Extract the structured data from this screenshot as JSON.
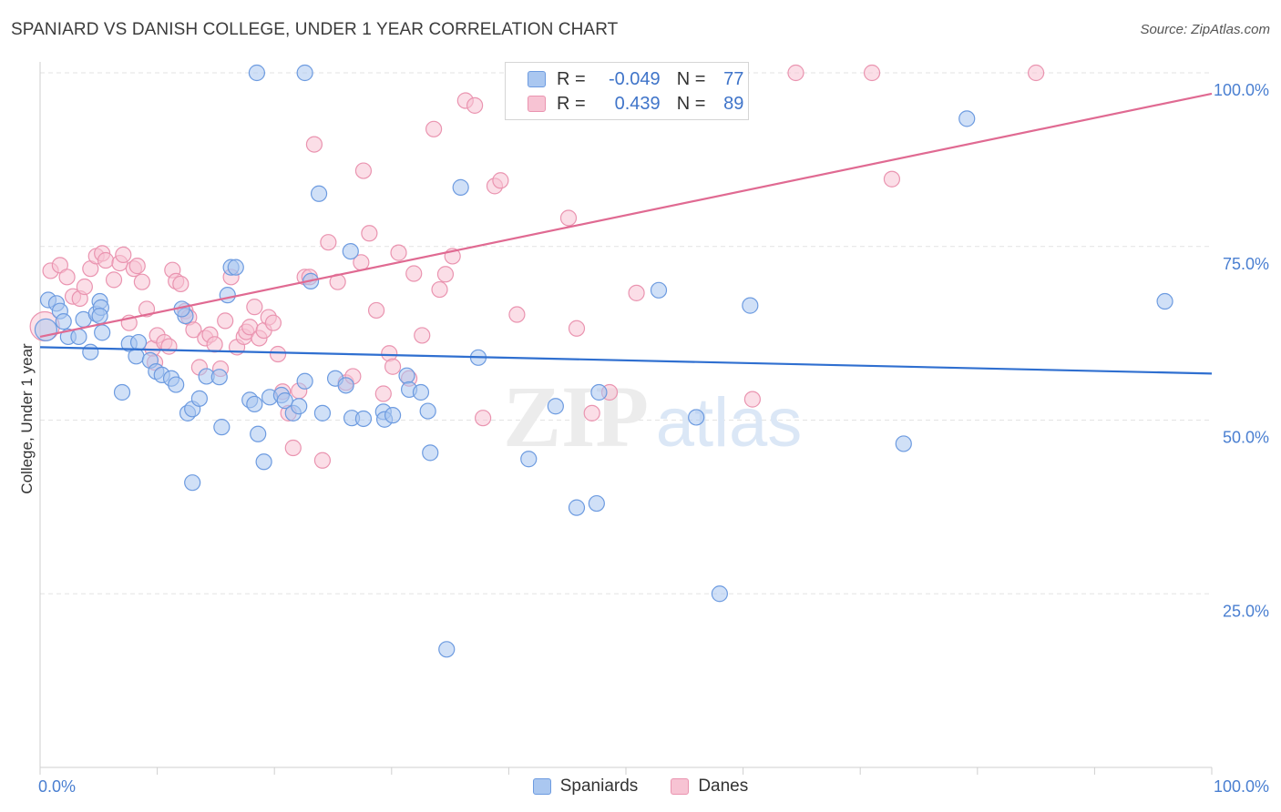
{
  "title": "SPANIARD VS DANISH COLLEGE, UNDER 1 YEAR CORRELATION CHART",
  "source": "Source: ZipAtlas.com",
  "legend": {
    "row1": {
      "r_label": "R =",
      "r_value": "-0.049",
      "n_label": "N =",
      "n_value": "77"
    },
    "row2": {
      "r_label": "R =",
      "r_value": "0.439",
      "n_label": "N =",
      "n_value": "89"
    }
  },
  "watermark": {
    "zip": "ZIP",
    "atlas": "atlas"
  },
  "colors": {
    "spaniards_fill": "#aac7f0",
    "spaniards_stroke": "#6d9be0",
    "spaniards_line": "#2f6fd0",
    "danes_fill": "#f7c3d3",
    "danes_stroke": "#ea94b0",
    "danes_line": "#e06a92",
    "axis_label": "#4a7fd1"
  },
  "chart_data": {
    "type": "scatter",
    "title": "SPANIARD VS DANISH COLLEGE, UNDER 1 YEAR CORRELATION CHART",
    "xlabel": "",
    "ylabel": "College, Under 1 year",
    "xlim": [
      0,
      100
    ],
    "ylim": [
      0,
      100
    ],
    "x_tick_labels": [
      "0.0%",
      "100.0%"
    ],
    "y_tick_labels": [
      "25.0%",
      "50.0%",
      "75.0%",
      "100.0%"
    ],
    "y_ticks": [
      25,
      50,
      75,
      100
    ],
    "grid": true,
    "legend_position": "top-center",
    "series": [
      {
        "name": "Spaniards",
        "R": -0.049,
        "N": 77,
        "trend": {
          "x": [
            0,
            100
          ],
          "y": [
            60.5,
            56.7
          ]
        },
        "points": [
          [
            0.7,
            67.3
          ],
          [
            1.4,
            66.8
          ],
          [
            1.7,
            65.7
          ],
          [
            2.0,
            64.2
          ],
          [
            2.4,
            62.0
          ],
          [
            3.3,
            62.0
          ],
          [
            3.7,
            64.5
          ],
          [
            4.3,
            59.8
          ],
          [
            4.8,
            65.3
          ],
          [
            5.1,
            67.1
          ],
          [
            5.2,
            66.2
          ],
          [
            5.1,
            65.0
          ],
          [
            5.3,
            62.6
          ],
          [
            7.0,
            54.0
          ],
          [
            7.6,
            61.0
          ],
          [
            8.2,
            59.2
          ],
          [
            8.4,
            61.2
          ],
          [
            9.4,
            58.6
          ],
          [
            9.9,
            57.0
          ],
          [
            10.4,
            56.5
          ],
          [
            11.2,
            56.0
          ],
          [
            11.6,
            55.1
          ],
          [
            12.4,
            65.0
          ],
          [
            12.1,
            66.0
          ],
          [
            12.6,
            51.0
          ],
          [
            13.0,
            51.6
          ],
          [
            13.6,
            53.1
          ],
          [
            13.0,
            41.0
          ],
          [
            14.2,
            56.3
          ],
          [
            15.3,
            56.2
          ],
          [
            15.5,
            49.0
          ],
          [
            16.0,
            68.0
          ],
          [
            16.3,
            72.0
          ],
          [
            16.7,
            72.0
          ],
          [
            17.9,
            52.9
          ],
          [
            18.3,
            52.3
          ],
          [
            18.6,
            48.0
          ],
          [
            19.1,
            44.0
          ],
          [
            19.6,
            53.3
          ],
          [
            20.6,
            53.6
          ],
          [
            20.9,
            52.8
          ],
          [
            21.6,
            51.0
          ],
          [
            22.1,
            52.0
          ],
          [
            22.6,
            55.6
          ],
          [
            23.1,
            70.0
          ],
          [
            23.8,
            82.6
          ],
          [
            24.1,
            51.0
          ],
          [
            25.2,
            56.0
          ],
          [
            26.5,
            74.3
          ],
          [
            26.6,
            50.3
          ],
          [
            27.6,
            50.2
          ],
          [
            29.3,
            51.2
          ],
          [
            29.4,
            50.1
          ],
          [
            30.1,
            50.7
          ],
          [
            31.3,
            56.4
          ],
          [
            31.5,
            54.4
          ],
          [
            32.5,
            54.0
          ],
          [
            33.1,
            51.3
          ],
          [
            33.3,
            45.3
          ],
          [
            34.7,
            17.0
          ],
          [
            35.9,
            83.5
          ],
          [
            37.4,
            59.0
          ],
          [
            41.7,
            44.4
          ],
          [
            44.0,
            52.0
          ],
          [
            45.8,
            37.4
          ],
          [
            47.5,
            38.0
          ],
          [
            47.7,
            54.0
          ],
          [
            52.8,
            68.7
          ],
          [
            56.0,
            50.4
          ],
          [
            58.0,
            25.0
          ],
          [
            60.6,
            66.5
          ],
          [
            73.7,
            46.6
          ],
          [
            79.1,
            93.4
          ],
          [
            96.0,
            67.1
          ],
          [
            18.5,
            100.0
          ],
          [
            22.6,
            100.0
          ],
          [
            26.1,
            55.0
          ]
        ]
      },
      {
        "name": "Danes",
        "R": 0.439,
        "N": 89,
        "trend": {
          "x": [
            0,
            100
          ],
          "y": [
            62.0,
            97.0
          ]
        },
        "points": [
          [
            0.9,
            71.5
          ],
          [
            1.7,
            72.3
          ],
          [
            2.3,
            70.6
          ],
          [
            2.8,
            67.8
          ],
          [
            3.4,
            67.5
          ],
          [
            3.8,
            69.2
          ],
          [
            4.3,
            71.8
          ],
          [
            4.8,
            73.6
          ],
          [
            5.3,
            74.0
          ],
          [
            5.6,
            73.0
          ],
          [
            6.3,
            70.2
          ],
          [
            6.8,
            72.6
          ],
          [
            7.1,
            73.8
          ],
          [
            7.6,
            64.0
          ],
          [
            8.0,
            71.8
          ],
          [
            8.3,
            72.2
          ],
          [
            8.7,
            69.9
          ],
          [
            9.1,
            66.0
          ],
          [
            9.6,
            60.3
          ],
          [
            9.8,
            58.3
          ],
          [
            10.0,
            62.2
          ],
          [
            10.6,
            61.2
          ],
          [
            11.0,
            60.6
          ],
          [
            11.3,
            71.6
          ],
          [
            11.6,
            70.0
          ],
          [
            12.0,
            69.6
          ],
          [
            12.4,
            65.7
          ],
          [
            12.7,
            64.8
          ],
          [
            13.1,
            63.0
          ],
          [
            13.6,
            57.6
          ],
          [
            14.1,
            61.8
          ],
          [
            14.5,
            62.3
          ],
          [
            14.9,
            60.9
          ],
          [
            15.4,
            57.4
          ],
          [
            15.8,
            64.3
          ],
          [
            16.3,
            70.6
          ],
          [
            16.8,
            60.5
          ],
          [
            17.4,
            62.0
          ],
          [
            17.6,
            62.7
          ],
          [
            17.9,
            63.4
          ],
          [
            18.3,
            66.3
          ],
          [
            18.7,
            61.8
          ],
          [
            19.1,
            62.9
          ],
          [
            19.5,
            64.8
          ],
          [
            19.9,
            64.0
          ],
          [
            20.3,
            59.5
          ],
          [
            20.7,
            54.1
          ],
          [
            21.2,
            51.0
          ],
          [
            21.6,
            46.0
          ],
          [
            22.1,
            54.2
          ],
          [
            22.6,
            70.6
          ],
          [
            23.0,
            70.6
          ],
          [
            23.4,
            89.7
          ],
          [
            24.1,
            44.2
          ],
          [
            24.6,
            75.6
          ],
          [
            25.4,
            69.9
          ],
          [
            26.1,
            55.4
          ],
          [
            26.7,
            56.3
          ],
          [
            27.4,
            72.7
          ],
          [
            27.6,
            85.9
          ],
          [
            28.1,
            76.9
          ],
          [
            28.7,
            65.8
          ],
          [
            29.3,
            53.8
          ],
          [
            29.8,
            59.6
          ],
          [
            30.1,
            57.7
          ],
          [
            30.6,
            74.1
          ],
          [
            31.5,
            56.0
          ],
          [
            31.9,
            71.1
          ],
          [
            32.6,
            62.2
          ],
          [
            33.6,
            91.9
          ],
          [
            34.1,
            68.8
          ],
          [
            34.6,
            71.0
          ],
          [
            35.2,
            73.6
          ],
          [
            36.3,
            96.0
          ],
          [
            37.1,
            95.3
          ],
          [
            37.8,
            50.3
          ],
          [
            38.8,
            83.7
          ],
          [
            39.3,
            84.5
          ],
          [
            40.7,
            65.2
          ],
          [
            45.1,
            79.1
          ],
          [
            45.8,
            63.2
          ],
          [
            47.1,
            51.0
          ],
          [
            48.6,
            54.0
          ],
          [
            50.9,
            68.3
          ],
          [
            60.8,
            53.0
          ],
          [
            72.7,
            84.7
          ],
          [
            85.0,
            100.0
          ],
          [
            71.0,
            100.0
          ],
          [
            64.5,
            100.0
          ]
        ]
      }
    ]
  }
}
